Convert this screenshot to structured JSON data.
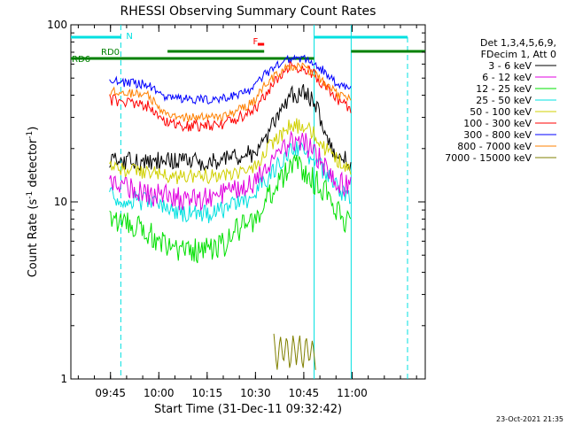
{
  "chart_data": {
    "type": "line",
    "title": "RHESSI Observing Summary Count Rates",
    "xlabel": "Start Time (31-Dec-11 09:32:42)",
    "ylabel_main": "Count Rate (s",
    "ylabel_sup1": "-1",
    "ylabel_mid": " detector",
    "ylabel_sup2": "-1",
    "ylabel_end": ")",
    "y_scale": "log",
    "ylim": [
      1,
      100
    ],
    "xlim_minutes": [
      0,
      110
    ],
    "x_ticks": [
      {
        "minute": 12.3,
        "label": "09:45"
      },
      {
        "minute": 27.3,
        "label": "10:00"
      },
      {
        "minute": 42.3,
        "label": "10:15"
      },
      {
        "minute": 57.3,
        "label": "10:30"
      },
      {
        "minute": 72.3,
        "label": "10:45"
      },
      {
        "minute": 87.3,
        "label": "11:00"
      }
    ],
    "y_ticks": [
      {
        "value": 1,
        "label": "1"
      },
      {
        "value": 10,
        "label": "10"
      },
      {
        "value": 100,
        "label": "100"
      }
    ],
    "legend_header": [
      "Det 1,3,4,5,6,9,",
      "FDecim 1, Att 0"
    ],
    "legend_position": "right",
    "footer_date": "23-Oct-2021 21:35",
    "flag_labels": {
      "night": "N",
      "flare": "F",
      "rd0": "RD0",
      "rd6": "RD6"
    },
    "night_start_minute": 15.5,
    "night_end_minute": 75.5,
    "saa_end_minute": 87,
    "series": [
      {
        "name": "3 - 6 keV",
        "color": "#000000",
        "amp": 0.25,
        "points": [
          [
            12,
            17
          ],
          [
            18,
            17
          ],
          [
            24,
            17
          ],
          [
            28,
            17
          ],
          [
            34,
            17
          ],
          [
            40,
            17
          ],
          [
            46,
            17
          ],
          [
            52,
            18
          ],
          [
            57,
            19
          ],
          [
            60,
            22
          ],
          [
            64,
            30
          ],
          [
            68,
            40
          ],
          [
            72,
            42
          ],
          [
            76,
            36
          ],
          [
            78,
            28
          ],
          [
            80,
            22
          ],
          [
            81,
            20
          ],
          [
            84,
            18
          ],
          [
            87,
            17
          ]
        ]
      },
      {
        "name": "6 - 12 keV",
        "color": "#e000e0",
        "amp": 0.3,
        "points": [
          [
            12,
            13
          ],
          [
            18,
            12
          ],
          [
            24,
            11
          ],
          [
            28,
            11
          ],
          [
            34,
            10.5
          ],
          [
            40,
            10.5
          ],
          [
            46,
            11
          ],
          [
            52,
            12
          ],
          [
            57,
            13
          ],
          [
            60,
            15
          ],
          [
            64,
            18
          ],
          [
            68,
            22
          ],
          [
            72,
            22
          ],
          [
            76,
            19
          ],
          [
            80,
            15
          ],
          [
            83,
            13
          ],
          [
            87,
            12
          ]
        ]
      },
      {
        "name": "12 - 25 keV",
        "color": "#00e000",
        "amp": 0.35,
        "points": [
          [
            12,
            8
          ],
          [
            18,
            7.5
          ],
          [
            24,
            7
          ],
          [
            28,
            6
          ],
          [
            34,
            5.5
          ],
          [
            40,
            5.3
          ],
          [
            46,
            5.5
          ],
          [
            52,
            7
          ],
          [
            57,
            8
          ],
          [
            60,
            10
          ],
          [
            64,
            13
          ],
          [
            68,
            16
          ],
          [
            72,
            16
          ],
          [
            76,
            13
          ],
          [
            80,
            11
          ],
          [
            83,
            9
          ],
          [
            87,
            7.5
          ]
        ]
      },
      {
        "name": "25 - 50 keV",
        "color": "#00e0e0",
        "amp": 0.25,
        "points": [
          [
            12,
            11
          ],
          [
            18,
            10.5
          ],
          [
            24,
            10
          ],
          [
            28,
            9.2
          ],
          [
            34,
            8.7
          ],
          [
            40,
            8.5
          ],
          [
            46,
            8.8
          ],
          [
            52,
            10
          ],
          [
            57,
            11
          ],
          [
            60,
            13
          ],
          [
            64,
            16
          ],
          [
            68,
            20
          ],
          [
            72,
            20
          ],
          [
            76,
            17
          ],
          [
            80,
            14
          ],
          [
            83,
            12
          ],
          [
            87,
            10
          ]
        ]
      },
      {
        "name": "50 - 100 keV",
        "color": "#d0d000",
        "amp": 0.2,
        "points": [
          [
            12,
            16
          ],
          [
            18,
            15
          ],
          [
            24,
            15
          ],
          [
            28,
            14
          ],
          [
            34,
            14
          ],
          [
            40,
            14
          ],
          [
            46,
            14
          ],
          [
            52,
            15
          ],
          [
            57,
            16
          ],
          [
            60,
            19
          ],
          [
            64,
            23
          ],
          [
            68,
            27
          ],
          [
            72,
            27
          ],
          [
            76,
            24
          ],
          [
            80,
            19
          ],
          [
            83,
            17
          ],
          [
            87,
            15
          ]
        ]
      },
      {
        "name": "100 - 300 keV",
        "color": "#ff0000",
        "amp": 0.15,
        "points": [
          [
            12,
            38
          ],
          [
            18,
            36
          ],
          [
            24,
            35
          ],
          [
            28,
            29
          ],
          [
            34,
            27
          ],
          [
            40,
            27
          ],
          [
            46,
            27
          ],
          [
            52,
            30
          ],
          [
            57,
            33
          ],
          [
            60,
            40
          ],
          [
            64,
            50
          ],
          [
            68,
            58
          ],
          [
            72,
            58
          ],
          [
            76,
            52
          ],
          [
            80,
            43
          ],
          [
            83,
            37
          ],
          [
            87,
            34
          ]
        ]
      },
      {
        "name": "300 - 800 keV",
        "color": "#0000ff",
        "amp": 0.12,
        "points": [
          [
            12,
            48
          ],
          [
            18,
            47
          ],
          [
            24,
            46
          ],
          [
            28,
            40
          ],
          [
            34,
            38
          ],
          [
            40,
            38
          ],
          [
            46,
            38
          ],
          [
            52,
            40
          ],
          [
            57,
            44
          ],
          [
            60,
            52
          ],
          [
            64,
            60
          ],
          [
            68,
            64
          ],
          [
            72,
            64
          ],
          [
            76,
            60
          ],
          [
            80,
            52
          ],
          [
            83,
            46
          ],
          [
            87,
            44
          ]
        ]
      },
      {
        "name": "800 - 7000 keV",
        "color": "#ff8000",
        "amp": 0.12,
        "points": [
          [
            12,
            42
          ],
          [
            18,
            41
          ],
          [
            24,
            40
          ],
          [
            28,
            33
          ],
          [
            34,
            30
          ],
          [
            40,
            30
          ],
          [
            46,
            30
          ],
          [
            52,
            33
          ],
          [
            57,
            37
          ],
          [
            60,
            45
          ],
          [
            64,
            53
          ],
          [
            68,
            58
          ],
          [
            72,
            58
          ],
          [
            76,
            53
          ],
          [
            80,
            45
          ],
          [
            83,
            40
          ],
          [
            87,
            38
          ]
        ]
      },
      {
        "name": "7000 - 15000 keV",
        "color": "#808000",
        "amp": 0.0,
        "points": [
          [
            63,
            1.8
          ],
          [
            64,
            1.1
          ],
          [
            65,
            1.8
          ],
          [
            66,
            1.2
          ],
          [
            67,
            1.8
          ],
          [
            68,
            1.1
          ],
          [
            69,
            1.8
          ],
          [
            70,
            1.2
          ],
          [
            71,
            1.8
          ],
          [
            72,
            1.1
          ],
          [
            73,
            1.8
          ],
          [
            74,
            1.2
          ],
          [
            75,
            1.7
          ],
          [
            76,
            1.1
          ]
        ]
      }
    ]
  }
}
